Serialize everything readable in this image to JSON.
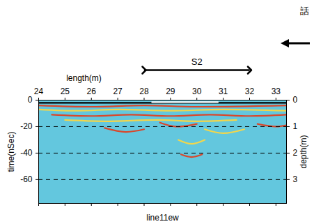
{
  "chart_data": {
    "type": "radargram",
    "x_label": "length(m)",
    "y_label": "time(nSec)",
    "y2_label": "depth(m)",
    "bottom_label": "line11ew",
    "corner_text": "話",
    "color": "#63c7de",
    "xlim": [
      24,
      33.4
    ],
    "xticks": [
      24,
      25,
      26,
      27,
      28,
      29,
      30,
      31,
      32,
      33
    ],
    "ylim": [
      -78,
      0
    ],
    "yticks": [
      0,
      -20,
      -40,
      -60
    ],
    "y2lim": [
      0,
      3.9
    ],
    "y2ticks": [
      0,
      1,
      2,
      3
    ],
    "grid": true,
    "line_style": "dashed",
    "annotations": [
      {
        "text": "S2",
        "x1": 28,
        "x2": 32
      }
    ],
    "reflections": [
      {
        "color": "#000000",
        "points": [
          [
            24,
            -2
          ],
          [
            33.4,
            -2
          ]
        ]
      },
      {
        "color": "#ffffff",
        "points": [
          [
            28.3,
            -1.5
          ],
          [
            30.8,
            -1.5
          ]
        ]
      },
      {
        "color": "#d9472b",
        "points": [
          [
            24,
            -4
          ],
          [
            26,
            -5
          ],
          [
            28,
            -4
          ],
          [
            30,
            -5
          ],
          [
            33.4,
            -4
          ]
        ]
      },
      {
        "color": "#f2d64b",
        "points": [
          [
            24,
            -7
          ],
          [
            25.5,
            -8
          ],
          [
            27,
            -7
          ],
          [
            29,
            -8
          ],
          [
            31,
            -7
          ],
          [
            33.4,
            -8
          ]
        ]
      },
      {
        "color": "#d9472b",
        "points": [
          [
            24.5,
            -11
          ],
          [
            26,
            -12
          ],
          [
            27.5,
            -11
          ],
          [
            29,
            -12
          ],
          [
            30.5,
            -11
          ],
          [
            32,
            -12
          ],
          [
            33.4,
            -11
          ]
        ]
      },
      {
        "color": "#f2d64b",
        "points": [
          [
            25,
            -15
          ],
          [
            26.5,
            -16
          ],
          [
            28.5,
            -15
          ],
          [
            30,
            -16
          ],
          [
            31.5,
            -15
          ]
        ]
      },
      {
        "color": "#d9472b",
        "points": [
          [
            26.5,
            -21
          ],
          [
            27.3,
            -24
          ],
          [
            28,
            -22
          ]
        ]
      },
      {
        "color": "#d9472b",
        "points": [
          [
            28.6,
            -17
          ],
          [
            29.2,
            -20
          ],
          [
            30,
            -18
          ]
        ]
      },
      {
        "color": "#f2d64b",
        "points": [
          [
            30.3,
            -22
          ],
          [
            31,
            -25
          ],
          [
            31.8,
            -22
          ]
        ]
      },
      {
        "color": "#d9472b",
        "points": [
          [
            32.3,
            -18
          ],
          [
            33,
            -20
          ],
          [
            33.4,
            -19
          ]
        ]
      },
      {
        "color": "#f2d64b",
        "points": [
          [
            29.3,
            -30
          ],
          [
            29.8,
            -33
          ],
          [
            30.3,
            -30
          ]
        ]
      },
      {
        "color": "#d9472b",
        "points": [
          [
            29.4,
            -41
          ],
          [
            29.8,
            -43
          ],
          [
            30.2,
            -41
          ]
        ]
      }
    ]
  }
}
